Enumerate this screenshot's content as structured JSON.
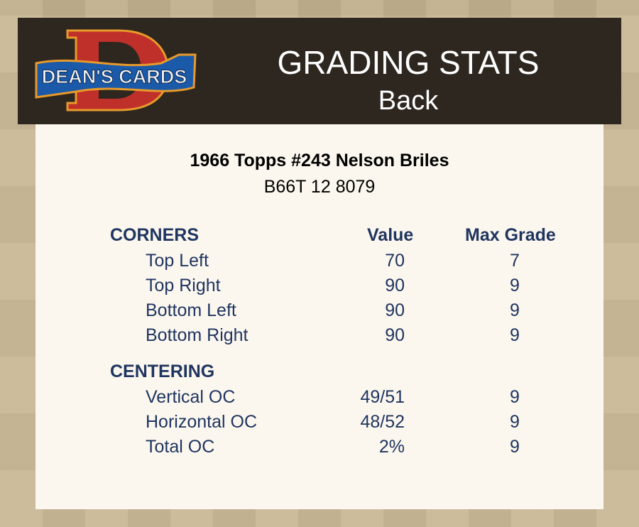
{
  "header": {
    "logo_text": "DEAN'S CARDS",
    "title": "GRADING STATS",
    "subtitle": "Back"
  },
  "card": {
    "title": "1966 Topps #243 Nelson Briles",
    "cert": "B66T 12 8079"
  },
  "columns": {
    "value": "Value",
    "max_grade": "Max Grade"
  },
  "corners": {
    "heading": "CORNERS",
    "rows": [
      {
        "label": "Top Left",
        "value": "70",
        "max": "7"
      },
      {
        "label": "Top Right",
        "value": "90",
        "max": "9"
      },
      {
        "label": "Bottom Left",
        "value": "90",
        "max": "9"
      },
      {
        "label": "Bottom Right",
        "value": "90",
        "max": "9"
      }
    ]
  },
  "centering": {
    "heading": "CENTERING",
    "rows": [
      {
        "label": "Vertical OC",
        "value": "49/51",
        "max": "9"
      },
      {
        "label": "Horizontal OC",
        "value": "48/52",
        "max": "9"
      },
      {
        "label": "Total OC",
        "value": "2%",
        "max": "9"
      }
    ]
  },
  "colors": {
    "text": "#1f3560",
    "header_bg": "#2d2720",
    "panel_bg": "#fcf7ee",
    "logo_red": "#c0302a",
    "logo_blue": "#1a5aa8"
  }
}
